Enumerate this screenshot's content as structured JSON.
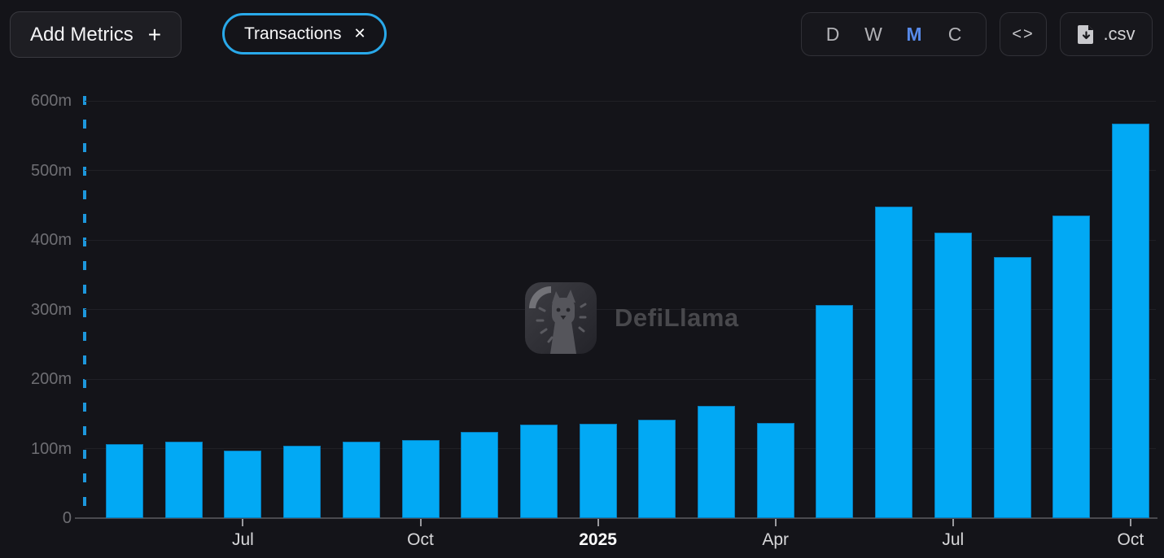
{
  "header": {
    "add_metrics_label": "Add Metrics",
    "add_metrics_plus": "+",
    "metric_pill": {
      "label": "Transactions",
      "close_icon": "✕"
    },
    "interval_options": [
      {
        "label": "D",
        "active": false
      },
      {
        "label": "W",
        "active": false
      },
      {
        "label": "M",
        "active": true
      },
      {
        "label": "C",
        "active": false
      }
    ],
    "embed_label": "<>",
    "csv_label": ".csv"
  },
  "watermark": {
    "text": "DefiLlama"
  },
  "colors": {
    "background": "#141419",
    "bar": "#02a9f4",
    "pill_border": "#29a9ea",
    "active_interval": "#5789e8",
    "dashed_guide": "#1d97dc",
    "y_label": "#6e6e73",
    "x_label": "#d8d8da"
  },
  "chart_data": {
    "type": "bar",
    "series_label": "Transactions",
    "unit": "m",
    "x": [
      "May 2024",
      "Jun 2024",
      "Jul 2024",
      "Aug 2024",
      "Sep 2024",
      "Oct 2024",
      "Nov 2024",
      "Dec 2024",
      "Jan 2025",
      "Feb 2025",
      "Mar 2025",
      "Apr 2025",
      "May 2025",
      "Jun 2025",
      "Jul 2025",
      "Aug 2025",
      "Sep 2025",
      "Oct 2025"
    ],
    "values": [
      107,
      110,
      97,
      104,
      110,
      112,
      124,
      134,
      136,
      141,
      161,
      137,
      306,
      448,
      411,
      376,
      435,
      567
    ],
    "ylim": [
      0,
      600
    ],
    "y_tick_labels": [
      "0",
      "100m",
      "200m",
      "300m",
      "400m",
      "500m",
      "600m"
    ],
    "x_tick_labels": [
      {
        "index": 2,
        "label": "Jul",
        "bold": false
      },
      {
        "index": 5,
        "label": "Oct",
        "bold": false
      },
      {
        "index": 8,
        "label": "2025",
        "bold": true
      },
      {
        "index": 11,
        "label": "Apr",
        "bold": false
      },
      {
        "index": 14,
        "label": "Jul",
        "bold": false
      },
      {
        "index": 17,
        "label": "Oct",
        "bold": false
      }
    ],
    "grid": true,
    "legend": false
  }
}
